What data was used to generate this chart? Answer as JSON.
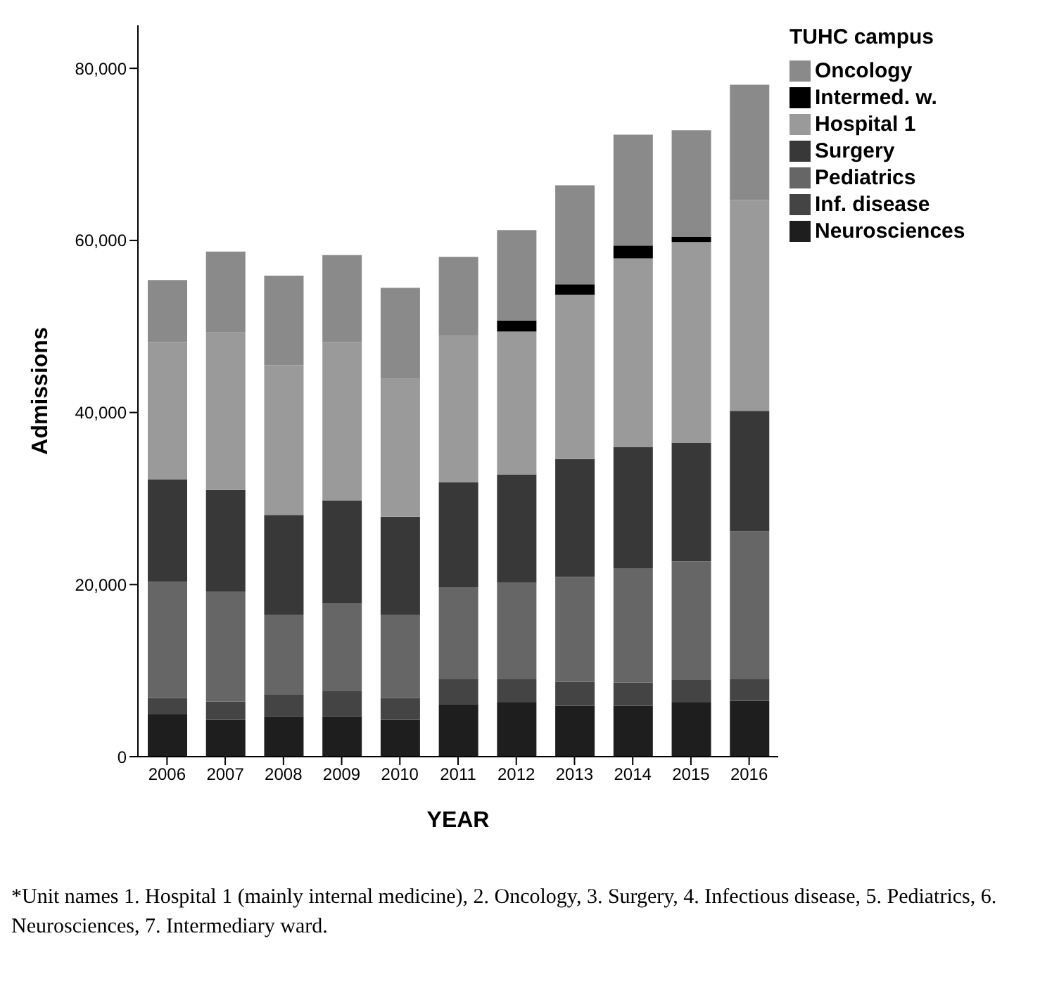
{
  "chart_data": {
    "type": "bar",
    "stacked": true,
    "xlabel": "YEAR",
    "ylabel": "Admissions",
    "legend_title": "TUHC campus",
    "legend": "top right",
    "grid": false,
    "categories": [
      "2006",
      "2007",
      "2008",
      "2009",
      "2010",
      "2011",
      "2012",
      "2013",
      "2014",
      "2015",
      "2016"
    ],
    "ylim": [
      0,
      85000
    ],
    "yticks": [
      {
        "value": 0,
        "label": "0"
      },
      {
        "value": 20000,
        "label": "20,000"
      },
      {
        "value": 40000,
        "label": "40,000"
      },
      {
        "value": 60000,
        "label": "60,000"
      },
      {
        "value": 80000,
        "label": "80,000"
      }
    ],
    "series": [
      {
        "name": "Neurosciences",
        "color": "#1e1e1e",
        "values": [
          4900,
          4300,
          4700,
          4700,
          4300,
          6100,
          6300,
          5900,
          5900,
          6300,
          6500
        ]
      },
      {
        "name": "Inf. disease",
        "color": "#444444",
        "values": [
          1900,
          2100,
          2500,
          2900,
          2500,
          2900,
          2700,
          2800,
          2700,
          2600,
          2500
        ]
      },
      {
        "name": "Pediatrics",
        "color": "#666666",
        "values": [
          13500,
          12800,
          9300,
          10200,
          9700,
          10700,
          11200,
          12200,
          13300,
          13800,
          17200
        ]
      },
      {
        "name": "Surgery",
        "color": "#383838",
        "values": [
          11900,
          11800,
          11600,
          12000,
          11400,
          12200,
          12600,
          13700,
          14100,
          13800,
          14000
        ]
      },
      {
        "name": "Hospital 1",
        "color": "#9a9a9a",
        "values": [
          16000,
          18300,
          17400,
          18400,
          16000,
          17000,
          16600,
          19100,
          21900,
          23300,
          24500
        ]
      },
      {
        "name": "Intermed. w.",
        "color": "#000000",
        "values": [
          null,
          null,
          null,
          null,
          null,
          null,
          1300,
          1200,
          1500,
          600,
          null
        ]
      },
      {
        "name": "Oncology",
        "color": "#8a8a8a",
        "values": [
          7200,
          9400,
          10400,
          10100,
          10600,
          9200,
          10500,
          11500,
          12900,
          12400,
          13400
        ]
      }
    ],
    "annotations": [
      "*Unit names 1. Hospital 1 (mainly internal medicine), 2. Oncology, 3. Surgery, 4. Infectious disease, 5. Pediatrics, 6. Neurosciences, 7. Intermediary ward."
    ]
  }
}
